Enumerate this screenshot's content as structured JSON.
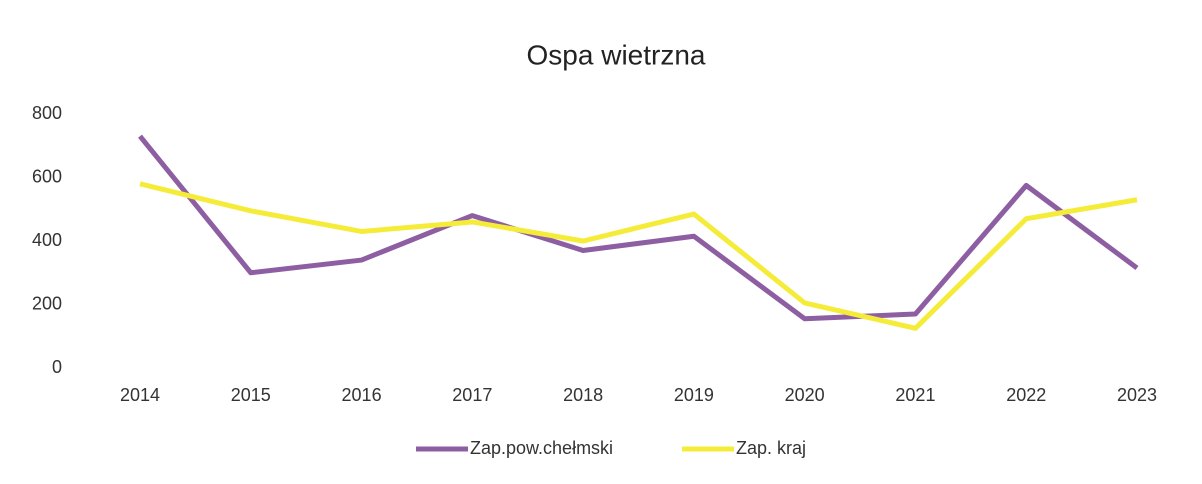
{
  "chart_data": {
    "type": "line",
    "title": "Ospa wietrzna",
    "categories": [
      "2014",
      "2015",
      "2016",
      "2017",
      "2018",
      "2019",
      "2020",
      "2021",
      "2022",
      "2023"
    ],
    "series": [
      {
        "name": "Zap.pow.chełmski",
        "color": "#8e5ea2",
        "values": [
          730,
          300,
          340,
          480,
          370,
          415,
          155,
          170,
          575,
          315
        ]
      },
      {
        "name": "Zap. kraj",
        "color": "#f5ec3a",
        "values": [
          580,
          495,
          430,
          460,
          400,
          485,
          205,
          125,
          470,
          530
        ]
      }
    ],
    "ylim": [
      0,
      800
    ],
    "yticks": [
      0,
      200,
      400,
      600,
      800
    ],
    "grid": false,
    "legend": "bottom"
  }
}
